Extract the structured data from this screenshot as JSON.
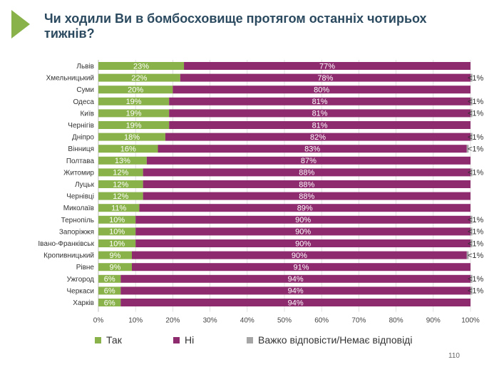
{
  "slide": {
    "title": "Чи ходили Ви в бомбосховище протягом останніх чотирьох тижнів?",
    "page_number": "110"
  },
  "colors": {
    "yes": "#8ab24a",
    "no": "#8e2a6e",
    "dk": "#a6a6a6",
    "accent_arrow": "#8ab24a",
    "title": "#2b4a5f"
  },
  "icons": {
    "title_marker": "arrow-icon"
  },
  "chart_data": {
    "type": "bar",
    "orientation": "horizontal",
    "stacked": true,
    "categories": [
      "Львів",
      "Хмельницький",
      "Суми",
      "Одеса",
      "Київ",
      "Чернігів",
      "Дніпро",
      "Вінниця",
      "Полтава",
      "Житомир",
      "Луцьк",
      "Чернівці",
      "Миколаїв",
      "Тернопіль",
      "Запоріжжя",
      "Івано-Франківськ",
      "Кропивницький",
      "Рівне",
      "Ужгород",
      "Черкаси",
      "Харків"
    ],
    "series": [
      {
        "name": "Так",
        "values": [
          23,
          22,
          20,
          19,
          19,
          19,
          18,
          16,
          13,
          12,
          12,
          12,
          11,
          10,
          10,
          10,
          9,
          9,
          6,
          6,
          6
        ],
        "labels": [
          "23%",
          "22%",
          "20%",
          "19%",
          "19%",
          "19%",
          "18%",
          "16%",
          "13%",
          "12%",
          "12%",
          "12%",
          "11%",
          "10%",
          "10%",
          "10%",
          "9%",
          "9%",
          "6%",
          "6%",
          "6%"
        ]
      },
      {
        "name": "Ні",
        "values": [
          77,
          78,
          80,
          81,
          81,
          81,
          82,
          83,
          87,
          88,
          88,
          88,
          89,
          90,
          90,
          90,
          90,
          91,
          94,
          94,
          94
        ],
        "labels": [
          "77%",
          "78%",
          "80%",
          "81%",
          "81%",
          "81%",
          "82%",
          "83%",
          "87%",
          "88%",
          "88%",
          "88%",
          "89%",
          "90%",
          "90%",
          "90%",
          "90%",
          "91%",
          "94%",
          "94%",
          "94%"
        ]
      },
      {
        "name": "Важко відповісти/Немає відповіді",
        "values": [
          0,
          0.5,
          0,
          0.5,
          0.5,
          0,
          0.5,
          0.5,
          0,
          0.5,
          0,
          0,
          0,
          0.5,
          0.5,
          0.5,
          0.5,
          0,
          0.5,
          0.5,
          0
        ],
        "labels": [
          "",
          "<1%",
          "",
          "<1%",
          "<1%",
          "",
          "<1%",
          "<1%",
          "",
          "<1%",
          "",
          "",
          "",
          "<1%",
          "<1%",
          "<1%",
          "<1%",
          "",
          "<1%",
          "<1%",
          ""
        ]
      }
    ],
    "xlim": [
      0,
      100
    ],
    "xticks": [
      "0%",
      "10%",
      "20%",
      "30%",
      "40%",
      "50%",
      "60%",
      "70%",
      "80%",
      "90%",
      "100%"
    ],
    "grid": true,
    "legend": "bottom"
  }
}
